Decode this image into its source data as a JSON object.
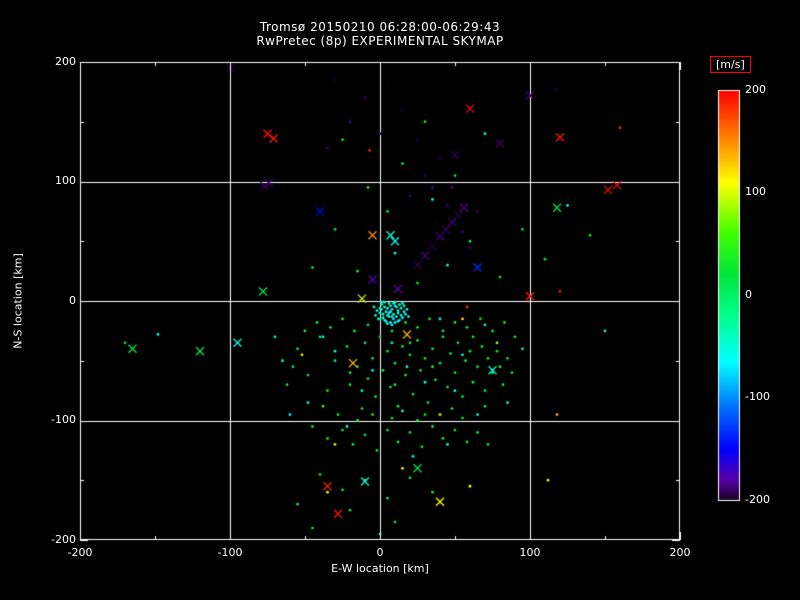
{
  "page": {
    "background": "#000000",
    "text_color": "#ffffff"
  },
  "chart_data": {
    "type": "scatter",
    "title": "Tromsø 20150210 06:28:00-06:29:43",
    "subtitle": "RwPretec (8p) EXPERIMENTAL SKYMAP",
    "xlabel": "E-W location [km]",
    "ylabel": "N-S location [km]",
    "xlim": [
      -200,
      200
    ],
    "ylim": [
      -200,
      200
    ],
    "xticks": [
      -200,
      -100,
      0,
      100,
      200
    ],
    "yticks": [
      200,
      100,
      0,
      -100,
      -200
    ],
    "grid": true,
    "grid_lines_at": [
      -100,
      0,
      100
    ],
    "legend_position": "right-colorbar",
    "colorbar": {
      "label": "[m/s]",
      "ticks": [
        200,
        100,
        0,
        -100,
        -200
      ],
      "min": -200,
      "max": 200,
      "box_color": "#ff0000"
    },
    "colormap_stops": [
      [
        200,
        [
          255,
          0,
          0
        ]
      ],
      [
        150,
        [
          255,
          140,
          0
        ]
      ],
      [
        110,
        [
          255,
          255,
          0
        ]
      ],
      [
        60,
        [
          60,
          255,
          0
        ]
      ],
      [
        20,
        [
          0,
          230,
          60
        ]
      ],
      [
        -20,
        [
          0,
          255,
          140
        ]
      ],
      [
        -65,
        [
          0,
          255,
          255
        ]
      ],
      [
        -110,
        [
          0,
          110,
          255
        ]
      ],
      [
        -150,
        [
          0,
          0,
          255
        ]
      ],
      [
        -180,
        [
          90,
          0,
          170
        ]
      ],
      [
        -200,
        [
          20,
          0,
          30
        ]
      ]
    ],
    "marker_styles": {
      "dot": "filled-circle",
      "x": "cross"
    },
    "dots": [
      [
        3,
        -5,
        -55
      ],
      [
        7,
        -9,
        -60
      ],
      [
        10,
        -4,
        -50
      ],
      [
        5,
        -12,
        -58
      ],
      [
        12,
        -10,
        -62
      ],
      [
        1,
        -7,
        -48
      ],
      [
        9,
        -15,
        -65
      ],
      [
        14,
        -6,
        -52
      ],
      [
        6,
        -2,
        -45
      ],
      [
        2,
        -14,
        -60
      ],
      [
        11,
        -13,
        -57
      ],
      [
        8,
        -7,
        -70
      ],
      [
        4,
        -9,
        -53
      ],
      [
        13,
        -3,
        -47
      ],
      [
        0,
        -10,
        -55
      ],
      [
        16,
        -9,
        -60
      ],
      [
        7,
        -18,
        -63
      ],
      [
        10,
        -1,
        -42
      ],
      [
        5,
        -6,
        -58
      ],
      [
        15,
        -14,
        -66
      ],
      [
        -2,
        -8,
        -50
      ],
      [
        9,
        -11,
        -54
      ],
      [
        12,
        -17,
        -61
      ],
      [
        3,
        -1,
        -44
      ],
      [
        6,
        -13,
        -59
      ],
      [
        18,
        -7,
        -56
      ],
      [
        1,
        -3,
        -49
      ],
      [
        8,
        -20,
        -64
      ],
      [
        14,
        -12,
        -58
      ],
      [
        -1,
        -15,
        -52
      ],
      [
        11,
        -5,
        -46
      ],
      [
        4,
        -17,
        -62
      ],
      [
        17,
        -11,
        -55
      ],
      [
        7,
        -4,
        -51
      ],
      [
        2,
        -11,
        -57
      ],
      [
        13,
        -16,
        -60
      ],
      [
        9,
        -2,
        -43
      ],
      [
        5,
        -19,
        -65
      ],
      [
        16,
        -4,
        -53
      ],
      [
        0,
        -6,
        -48
      ],
      [
        10,
        -18,
        -67
      ],
      [
        -3,
        -12,
        -54
      ],
      [
        12,
        -8,
        -50
      ],
      [
        6,
        -10,
        -59
      ],
      [
        15,
        -2,
        -45
      ],
      [
        3,
        -16,
        -61
      ],
      [
        8,
        -13,
        -56
      ],
      [
        1,
        -1,
        -41
      ],
      [
        19,
        -13,
        -58
      ],
      [
        -4,
        -5,
        -47
      ],
      [
        -55,
        -40,
        10
      ],
      [
        -48,
        -62,
        20
      ],
      [
        -40,
        -30,
        5
      ],
      [
        -35,
        -75,
        15
      ],
      [
        -30,
        -50,
        0
      ],
      [
        -28,
        -95,
        25
      ],
      [
        -22,
        -38,
        12
      ],
      [
        -20,
        -70,
        8
      ],
      [
        -15,
        -55,
        18
      ],
      [
        -12,
        -90,
        30
      ],
      [
        -10,
        -35,
        5
      ],
      [
        -8,
        -65,
        22
      ],
      [
        -5,
        -48,
        15
      ],
      [
        -3,
        -80,
        10
      ],
      [
        0,
        -30,
        28
      ],
      [
        2,
        -58,
        6
      ],
      [
        5,
        -42,
        18
      ],
      [
        7,
        -72,
        12
      ],
      [
        10,
        -52,
        25
      ],
      [
        12,
        -88,
        8
      ],
      [
        15,
        -38,
        16
      ],
      [
        17,
        -62,
        30
      ],
      [
        20,
        -45,
        10
      ],
      [
        22,
        -78,
        20
      ],
      [
        25,
        -33,
        5
      ],
      [
        27,
        -58,
        26
      ],
      [
        30,
        -48,
        14
      ],
      [
        32,
        -85,
        18
      ],
      [
        35,
        -40,
        8
      ],
      [
        37,
        -66,
        24
      ],
      [
        40,
        -52,
        12
      ],
      [
        42,
        -30,
        30
      ],
      [
        45,
        -72,
        16
      ],
      [
        47,
        -44,
        6
      ],
      [
        50,
        -60,
        22
      ],
      [
        52,
        -35,
        10
      ],
      [
        55,
        -80,
        18
      ],
      [
        57,
        -50,
        28
      ],
      [
        60,
        -42,
        14
      ],
      [
        62,
        -68,
        8
      ],
      [
        65,
        -55,
        20
      ],
      [
        68,
        -38,
        12
      ],
      [
        70,
        -75,
        25
      ],
      [
        72,
        -48,
        16
      ],
      [
        75,
        -60,
        6
      ],
      [
        78,
        -42,
        22
      ],
      [
        80,
        -55,
        30
      ],
      [
        82,
        -70,
        10
      ],
      [
        85,
        -48,
        18
      ],
      [
        88,
        -60,
        14
      ],
      [
        -45,
        -105,
        20
      ],
      [
        -35,
        -115,
        12
      ],
      [
        -25,
        -108,
        25
      ],
      [
        -18,
        -120,
        8
      ],
      [
        -10,
        -112,
        18
      ],
      [
        -2,
        -125,
        15
      ],
      [
        5,
        -108,
        28
      ],
      [
        12,
        -118,
        10
      ],
      [
        20,
        -110,
        22
      ],
      [
        28,
        -122,
        16
      ],
      [
        35,
        -105,
        6
      ],
      [
        42,
        -115,
        25
      ],
      [
        50,
        -108,
        14
      ],
      [
        58,
        -118,
        20
      ],
      [
        65,
        -110,
        8
      ],
      [
        72,
        -120,
        18
      ],
      [
        -15,
        -100,
        30
      ],
      [
        8,
        -98,
        12
      ],
      [
        30,
        -95,
        24
      ],
      [
        55,
        -98,
        16
      ],
      [
        -50,
        -25,
        8
      ],
      [
        -42,
        -18,
        20
      ],
      [
        -33,
        -22,
        15
      ],
      [
        -25,
        -15,
        28
      ],
      [
        -17,
        -25,
        10
      ],
      [
        -8,
        -20,
        18
      ],
      [
        0,
        -15,
        5
      ],
      [
        8,
        -25,
        25
      ],
      [
        17,
        -18,
        12
      ],
      [
        25,
        -22,
        30
      ],
      [
        33,
        -15,
        16
      ],
      [
        42,
        -25,
        8
      ],
      [
        50,
        -18,
        22
      ],
      [
        58,
        -22,
        14
      ],
      [
        67,
        -15,
        20
      ],
      [
        75,
        -25,
        10
      ],
      [
        83,
        -18,
        26
      ],
      [
        90,
        -30,
        18
      ],
      [
        -58,
        -55,
        12
      ],
      [
        -62,
        -70,
        24
      ],
      [
        20,
        -35,
        40
      ],
      [
        35,
        -55,
        45
      ],
      [
        -20,
        -60,
        35
      ],
      [
        48,
        -90,
        38
      ],
      [
        10,
        -70,
        42
      ],
      [
        -38,
        -88,
        48
      ],
      [
        62,
        -30,
        36
      ],
      [
        25,
        -100,
        44
      ],
      [
        -5,
        -95,
        40
      ],
      [
        70,
        -88,
        34
      ],
      [
        40,
        -95,
        105
      ],
      [
        -30,
        -120,
        95
      ],
      [
        15,
        -140,
        110
      ],
      [
        55,
        -15,
        120
      ],
      [
        -52,
        -45,
        100
      ],
      [
        78,
        -35,
        90
      ],
      [
        118,
        -95,
        140
      ],
      [
        112,
        -150,
        95
      ],
      [
        60,
        -155,
        105
      ],
      [
        -35,
        -160,
        100
      ],
      [
        120,
        8,
        195
      ],
      [
        -7,
        126,
        190
      ],
      [
        58,
        -5,
        185
      ],
      [
        -40,
        -145,
        20
      ],
      [
        -25,
        -158,
        15
      ],
      [
        -10,
        -150,
        25
      ],
      [
        5,
        -165,
        10
      ],
      [
        20,
        -148,
        30
      ],
      [
        -55,
        -170,
        18
      ],
      [
        35,
        -160,
        8
      ],
      [
        -20,
        -175,
        22
      ],
      [
        10,
        -185,
        12
      ],
      [
        -45,
        -190,
        16
      ],
      [
        0,
        -195,
        -50
      ],
      [
        -60,
        -95,
        -55
      ],
      [
        45,
        -120,
        -60
      ],
      [
        -30,
        -42,
        -48
      ],
      [
        65,
        -95,
        -52
      ],
      [
        18,
        -55,
        -58
      ],
      [
        -12,
        -75,
        -45
      ],
      [
        30,
        -68,
        -62
      ],
      [
        55,
        -45,
        -50
      ],
      [
        -48,
        -85,
        -58
      ],
      [
        8,
        -35,
        -44
      ],
      [
        40,
        -15,
        -52
      ],
      [
        -22,
        -105,
        -60
      ],
      [
        70,
        -20,
        -46
      ],
      [
        15,
        -92,
        -54
      ],
      [
        -5,
        -58,
        -50
      ],
      [
        50,
        -75,
        -56
      ],
      [
        85,
        -85,
        -48
      ],
      [
        -38,
        -30,
        -58
      ],
      [
        22,
        -130,
        -52
      ],
      [
        -65,
        -50,
        -44
      ],
      [
        95,
        -40,
        -50
      ],
      [
        -70,
        -30,
        -60
      ],
      [
        -15,
        25,
        15
      ],
      [
        10,
        40,
        -50
      ],
      [
        25,
        15,
        20
      ],
      [
        -30,
        60,
        10
      ],
      [
        45,
        30,
        -45
      ],
      [
        5,
        75,
        18
      ],
      [
        60,
        50,
        12
      ],
      [
        -8,
        95,
        25
      ],
      [
        35,
        85,
        -55
      ],
      [
        15,
        115,
        8
      ],
      [
        -25,
        135,
        20
      ],
      [
        50,
        105,
        15
      ],
      [
        70,
        140,
        -48
      ],
      [
        30,
        150,
        22
      ],
      [
        -45,
        28,
        12
      ],
      [
        80,
        20,
        30
      ],
      [
        95,
        60,
        18
      ],
      [
        110,
        35,
        10
      ],
      [
        125,
        80,
        -52
      ],
      [
        140,
        55,
        20
      ],
      [
        -30,
        185,
        -195
      ],
      [
        -10,
        170,
        -190
      ],
      [
        5,
        182,
        -200
      ],
      [
        -20,
        150,
        -185
      ],
      [
        15,
        160,
        -195
      ],
      [
        0,
        140,
        -190
      ],
      [
        -35,
        128,
        -185
      ],
      [
        25,
        135,
        -195
      ],
      [
        40,
        120,
        -190
      ],
      [
        35,
        95,
        -185
      ],
      [
        45,
        80,
        -190
      ],
      [
        50,
        68,
        -195
      ],
      [
        55,
        58,
        -185
      ],
      [
        42,
        52,
        -190
      ],
      [
        38,
        65,
        -200
      ],
      [
        60,
        45,
        -188
      ],
      [
        30,
        105,
        -192
      ],
      [
        20,
        88,
        -186
      ],
      [
        48,
        95,
        -183
      ],
      [
        65,
        75,
        -191
      ],
      [
        -170,
        -35,
        15
      ],
      [
        -148,
        -28,
        -48
      ],
      [
        150,
        -25,
        -50
      ],
      [
        160,
        145,
        190
      ],
      [
        117,
        177,
        -195
      ]
    ],
    "xmarks": [
      [
        25,
        30,
        -190
      ],
      [
        30,
        38,
        -185
      ],
      [
        35,
        46,
        -195
      ],
      [
        40,
        54,
        -188
      ],
      [
        44,
        60,
        -192
      ],
      [
        48,
        66,
        -186
      ],
      [
        52,
        72,
        -196
      ],
      [
        56,
        78,
        -184
      ],
      [
        -77,
        96,
        -190
      ],
      [
        -74,
        99,
        -188
      ],
      [
        50,
        122,
        -193
      ],
      [
        100,
        172,
        -187
      ],
      [
        -100,
        195,
        -195
      ],
      [
        80,
        132,
        -189
      ],
      [
        12,
        10,
        -180
      ],
      [
        -5,
        18,
        -178
      ],
      [
        -75,
        140,
        195
      ],
      [
        -71,
        136,
        190
      ],
      [
        60,
        161,
        198
      ],
      [
        120,
        137,
        192
      ],
      [
        152,
        93,
        196
      ],
      [
        100,
        4,
        188
      ],
      [
        -28,
        -178,
        194
      ],
      [
        -35,
        -155,
        190
      ],
      [
        158,
        97,
        199
      ],
      [
        -5,
        55,
        150
      ],
      [
        18,
        -28,
        140
      ],
      [
        -18,
        -52,
        130
      ],
      [
        -165,
        -40,
        20
      ],
      [
        -120,
        -42,
        25
      ],
      [
        -78,
        8,
        15
      ],
      [
        118,
        78,
        20
      ],
      [
        25,
        -140,
        18
      ],
      [
        -95,
        -35,
        -55
      ],
      [
        7,
        55,
        -50
      ],
      [
        10,
        50,
        -58
      ],
      [
        -10,
        -151,
        -52
      ],
      [
        75,
        -58,
        -48
      ],
      [
        -12,
        2,
        100
      ],
      [
        40,
        -168,
        110
      ],
      [
        65,
        28,
        -135
      ],
      [
        -40,
        75,
        -148
      ]
    ]
  }
}
